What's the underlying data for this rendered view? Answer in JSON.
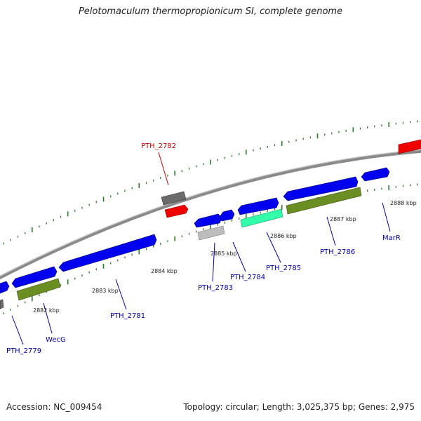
{
  "title": "Pelotomaculum thermopropionicum SI, complete genome",
  "footer": {
    "accession": "Accession: NC_009454",
    "topology": "Topology: circular; Length: 3,025,375 bp; Genes: 2,975"
  },
  "colors": {
    "cds_blue": "#0000ee",
    "highlight_red": "#ee0000",
    "grey_dark": "#6b6b6b",
    "grey_light": "#bdbdbd",
    "teal": "#33ffaa",
    "olive": "#6b8e23",
    "backbone": "#8a8a8a",
    "ticks": "#2a7a2a",
    "label_blue": "#0000aa",
    "label_red": "#cc0000"
  },
  "scale_labels": [
    "2882 kbp",
    "2883 kbp",
    "2884 kbp",
    "2885 kbp",
    "2886 kbp",
    "2887 kbp",
    "2888 kbp"
  ],
  "gene_labels": [
    {
      "name": "PTH_2782",
      "color": "red"
    },
    {
      "name": "PTH_2779",
      "color": "blue"
    },
    {
      "name": "WecG",
      "color": "blue"
    },
    {
      "name": "PTH_2781",
      "color": "blue"
    },
    {
      "name": "PTH_2783",
      "color": "blue"
    },
    {
      "name": "PTH_2784",
      "color": "blue"
    },
    {
      "name": "PTH_2785",
      "color": "blue"
    },
    {
      "name": "PTH_2786",
      "color": "blue"
    },
    {
      "name": "MarR",
      "color": "blue"
    }
  ]
}
